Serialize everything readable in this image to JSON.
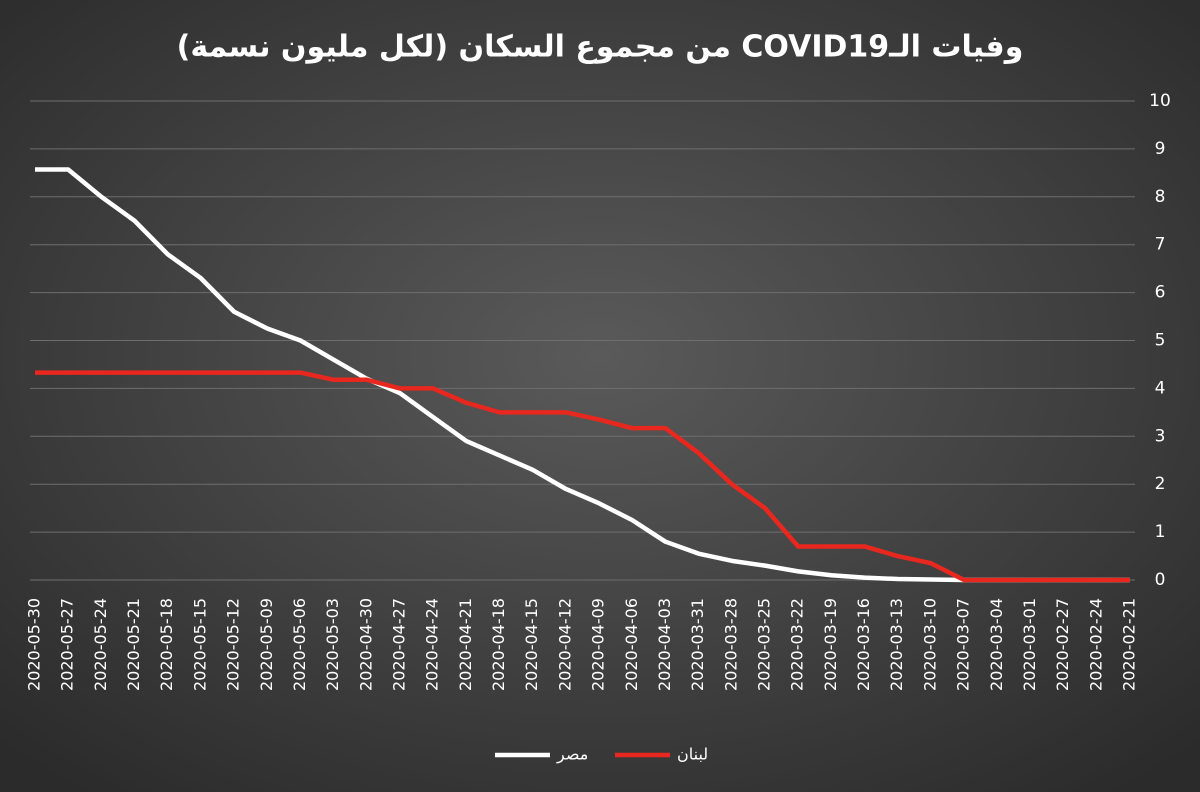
{
  "chart_data": {
    "type": "line",
    "title": "وفيات الـCOVID19 من مجموع السكان (لكل مليون نسمة)",
    "categories": [
      "2020-05-30",
      "2020-05-27",
      "2020-05-24",
      "2020-05-21",
      "2020-05-18",
      "2020-05-15",
      "2020-05-12",
      "2020-05-09",
      "2020-05-06",
      "2020-05-03",
      "2020-04-30",
      "2020-04-27",
      "2020-04-24",
      "2020-04-21",
      "2020-04-18",
      "2020-04-15",
      "2020-04-12",
      "2020-04-09",
      "2020-04-06",
      "2020-04-03",
      "2020-03-31",
      "2020-03-28",
      "2020-03-25",
      "2020-03-22",
      "2020-03-19",
      "2020-03-16",
      "2020-03-13",
      "2020-03-10",
      "2020-03-07",
      "2020-03-04",
      "2020-03-01",
      "2020-02-27",
      "2020-02-24",
      "2020-02-21"
    ],
    "series": [
      {
        "name": "مصر",
        "color": "#ffffff",
        "values": [
          8.57,
          8.57,
          8.0,
          7.5,
          6.8,
          6.3,
          5.6,
          5.25,
          5.0,
          4.6,
          4.2,
          3.9,
          3.4,
          2.9,
          2.6,
          2.3,
          1.9,
          1.6,
          1.25,
          0.8,
          0.55,
          0.4,
          0.3,
          0.18,
          0.1,
          0.05,
          0.02,
          0.01,
          0,
          0,
          0,
          0,
          0,
          0
        ]
      },
      {
        "name": "لبنان",
        "color": "#e8281e",
        "values": [
          4.33,
          4.33,
          4.33,
          4.33,
          4.33,
          4.33,
          4.33,
          4.33,
          4.33,
          4.18,
          4.18,
          4.0,
          4.0,
          3.7,
          3.5,
          3.5,
          3.5,
          3.35,
          3.17,
          3.17,
          2.65,
          2.0,
          1.5,
          0.7,
          0.7,
          0.7,
          0.5,
          0.35,
          0,
          0,
          0,
          0,
          0,
          0
        ]
      }
    ],
    "ylim": [
      0,
      10
    ],
    "yticks": [
      0,
      1,
      2,
      3,
      4,
      5,
      6,
      7,
      8,
      9,
      10
    ],
    "grid": true,
    "y_axis_side": "right",
    "x_reversed": true,
    "legend": "bottom"
  }
}
